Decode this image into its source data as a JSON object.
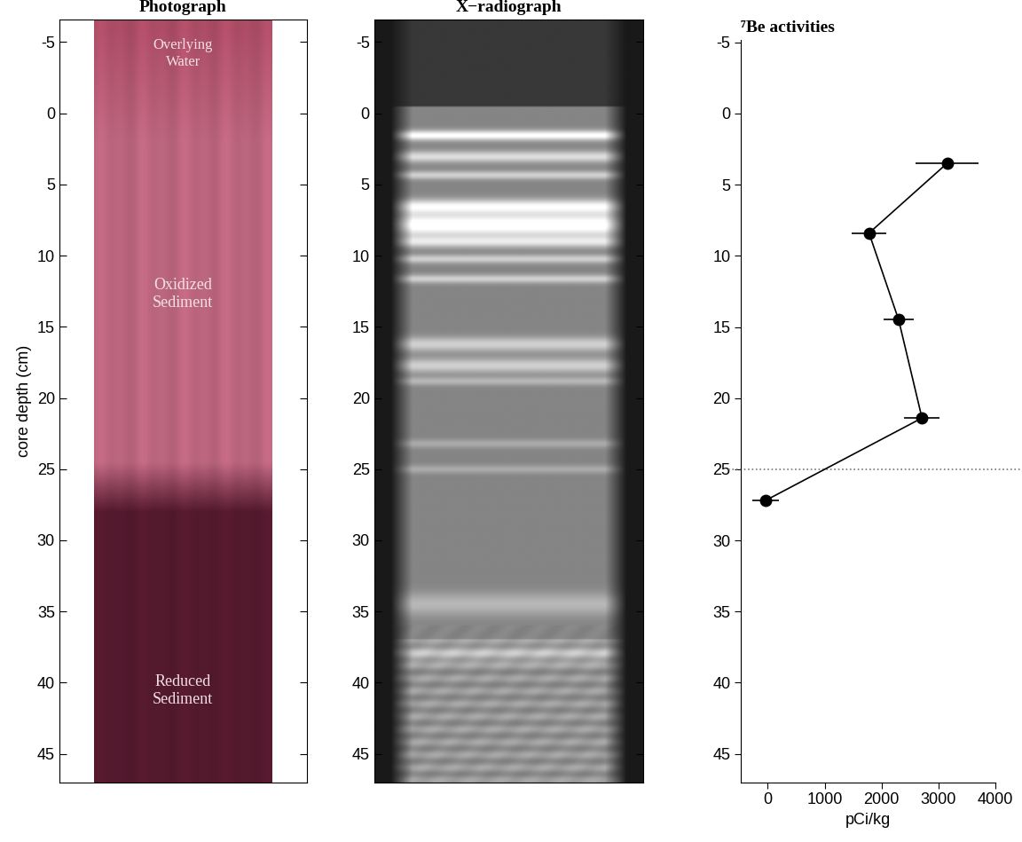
{
  "chart_data": [
    {
      "type": "image",
      "title": "Photograph",
      "ylabel": "core depth (cm)",
      "ylim": [
        47,
        -6.6
      ],
      "yticks": [
        -5,
        0,
        5,
        10,
        15,
        20,
        25,
        30,
        35,
        40,
        45
      ],
      "tick_labels": "y",
      "annotations": [
        "Overlying\nWater",
        "Oxidized\nSediment",
        "Reduced\nSediment"
      ]
    },
    {
      "type": "image",
      "title": "X−radiograph",
      "ylim": [
        47,
        -6.6
      ],
      "yticks": [
        -5,
        0,
        5,
        10,
        15,
        20,
        25,
        30,
        35,
        40,
        45
      ],
      "tick_labels": "y"
    },
    {
      "type": "line",
      "title": "⁷Be activities",
      "xlabel": "pCi/kg",
      "xlim": [
        -470,
        4000
      ],
      "xticks": [
        0,
        1000,
        2000,
        3000,
        4000
      ],
      "ylim": [
        47,
        -5.2
      ],
      "yticks": [
        -5,
        0,
        5,
        10,
        15,
        20,
        25,
        30,
        35,
        40,
        45
      ],
      "x": [
        3150,
        1780,
        2300,
        2710,
        -40
      ],
      "values": [
        3.5,
        8.4,
        14.5,
        21.4,
        27.2
      ],
      "xerr": [
        560,
        300,
        270,
        310,
        230
      ],
      "reference_lines": [
        25
      ],
      "color": "#000000",
      "marker": "o",
      "line_style": "solid"
    }
  ]
}
